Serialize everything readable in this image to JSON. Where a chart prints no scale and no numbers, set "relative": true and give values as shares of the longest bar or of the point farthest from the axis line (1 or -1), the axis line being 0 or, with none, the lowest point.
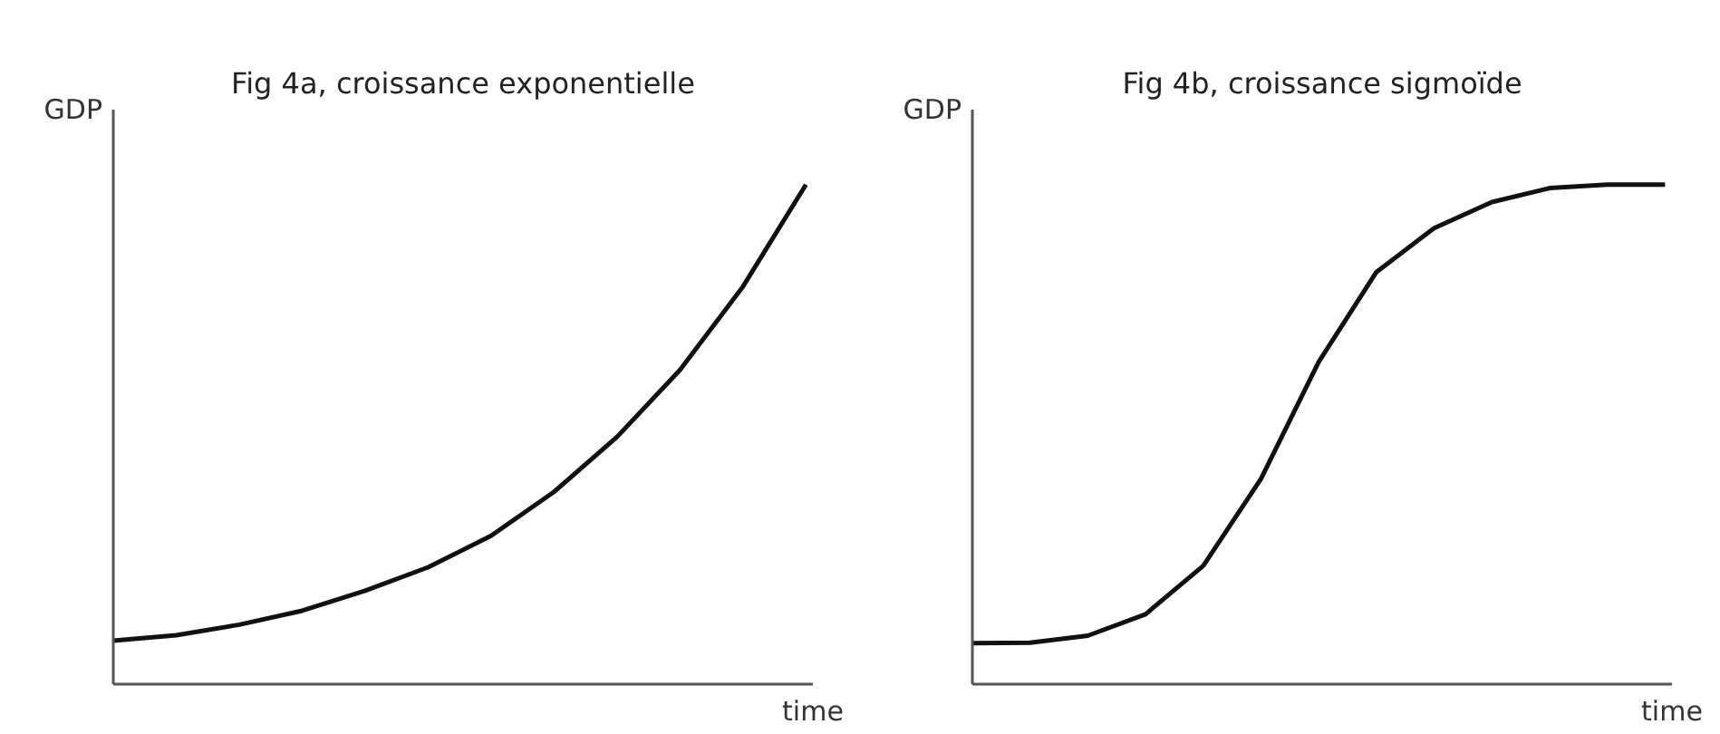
{
  "chart_data": [
    {
      "type": "line",
      "title": "Fig 4a, croissance exponentielle",
      "xlabel": "time",
      "ylabel": "GDP",
      "relative": true,
      "categories": [
        null,
        null,
        null,
        null,
        null,
        null,
        null,
        null,
        null,
        null,
        null,
        null
      ],
      "series": [
        {
          "color": "#111111",
          "values": [
            0.087,
            0.098,
            0.119,
            0.147,
            0.187,
            0.234,
            0.297,
            0.385,
            0.495,
            0.629,
            0.796,
            1.0
          ]
        }
      ]
    },
    {
      "type": "line",
      "title": "Fig 4b, croissance sigmoïde",
      "xlabel": "time",
      "ylabel": "GDP",
      "relative": true,
      "categories": [
        null,
        null,
        null,
        null,
        null,
        null,
        null,
        null,
        null,
        null,
        null,
        null,
        null
      ],
      "series": [
        {
          "color": "#111111",
          "values": [
            0.082,
            0.083,
            0.097,
            0.14,
            0.237,
            0.411,
            0.645,
            0.825,
            0.913,
            0.965,
            0.993,
            1.0,
            1.0
          ]
        }
      ]
    }
  ]
}
